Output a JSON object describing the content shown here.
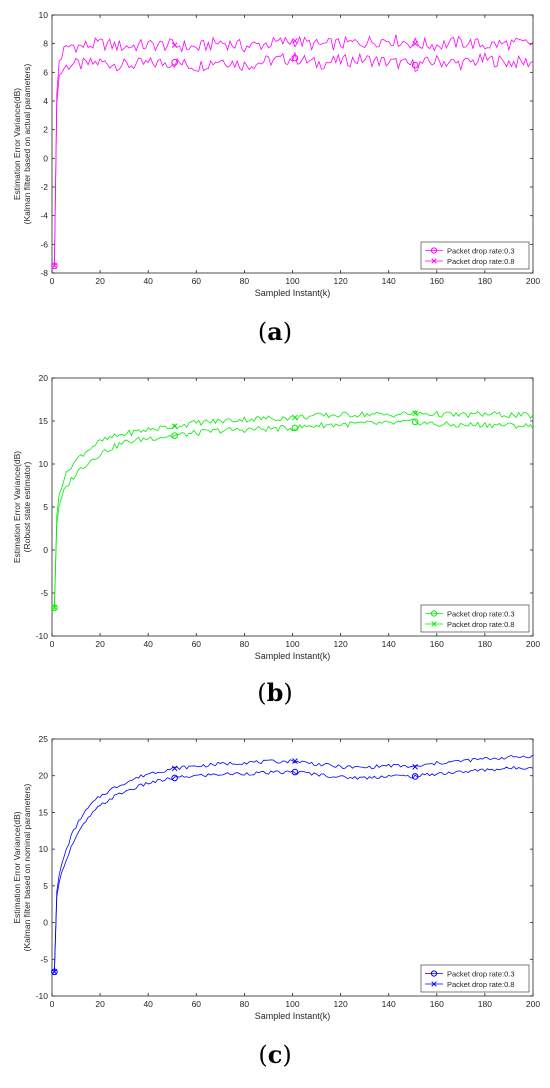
{
  "chart_data": [
    {
      "panel_label": "a",
      "type": "line",
      "color": "#ff00ff",
      "xlabel": "Sampled Instant(k)",
      "ylabel": [
        "Estimation Error Variance(dB)",
        "(Kalman filter based on actual parameters)"
      ],
      "xlim": [
        0,
        200
      ],
      "ylim": [
        -8,
        10
      ],
      "xticks": [
        0,
        20,
        40,
        60,
        80,
        100,
        120,
        140,
        160,
        180,
        200
      ],
      "yticks": [
        -8,
        -6,
        -4,
        -2,
        0,
        2,
        4,
        6,
        8,
        10
      ],
      "legend_position": "bottom-right",
      "series": [
        {
          "name": "Packet drop rate:0.3",
          "marker": "circle",
          "x": [
            1,
            2,
            3,
            5,
            8,
            12,
            20,
            30,
            40,
            51,
            60,
            70,
            80,
            90,
            101,
            110,
            120,
            130,
            140,
            151,
            160,
            170,
            180,
            190,
            200
          ],
          "y": [
            -7.5,
            3.8,
            5.8,
            6.3,
            6.6,
            6.5,
            6.7,
            6.5,
            6.6,
            6.7,
            6.4,
            6.9,
            6.5,
            6.8,
            7.0,
            6.6,
            6.8,
            6.9,
            6.7,
            6.5,
            6.8,
            6.6,
            6.9,
            6.7,
            6.7
          ]
        },
        {
          "name": "Packet drop rate:0.8",
          "marker": "x",
          "x": [
            1,
            2,
            3,
            5,
            8,
            12,
            20,
            30,
            40,
            51,
            60,
            70,
            80,
            90,
            101,
            110,
            120,
            130,
            140,
            151,
            160,
            170,
            180,
            190,
            200
          ],
          "y": [
            -7.5,
            4.5,
            6.8,
            7.5,
            7.9,
            7.8,
            8.0,
            7.8,
            7.9,
            7.9,
            7.7,
            8.1,
            7.8,
            8.0,
            8.2,
            7.9,
            8.0,
            8.1,
            8.3,
            8.0,
            7.9,
            8.1,
            7.9,
            8.0,
            8.0
          ]
        }
      ]
    },
    {
      "panel_label": "b",
      "type": "line",
      "color": "#00ee00",
      "xlabel": "Sampled Instant(k)",
      "ylabel": [
        "Estimation Error Variance(dB)",
        "(Robust state estimator)"
      ],
      "xlim": [
        0,
        200
      ],
      "ylim": [
        -10,
        20
      ],
      "xticks": [
        0,
        20,
        40,
        60,
        80,
        100,
        120,
        140,
        160,
        180,
        200
      ],
      "yticks": [
        -10,
        -5,
        0,
        5,
        10,
        15,
        20
      ],
      "legend_position": "bottom-right",
      "series": [
        {
          "name": "Packet drop rate:0.3",
          "marker": "circle",
          "x": [
            1,
            2,
            3,
            5,
            8,
            12,
            16,
            20,
            25,
            30,
            40,
            51,
            60,
            70,
            80,
            90,
            101,
            110,
            120,
            130,
            140,
            151,
            160,
            170,
            180,
            190,
            200
          ],
          "y": [
            -6.7,
            3.0,
            5.2,
            6.8,
            8.2,
            9.5,
            10.4,
            11.2,
            11.9,
            12.5,
            13.0,
            13.3,
            13.6,
            13.9,
            14.0,
            14.1,
            14.2,
            14.5,
            14.6,
            14.7,
            14.7,
            14.9,
            14.6,
            14.5,
            14.6,
            14.5,
            14.4
          ]
        },
        {
          "name": "Packet drop rate:0.8",
          "marker": "x",
          "x": [
            1,
            2,
            3,
            5,
            8,
            12,
            16,
            20,
            25,
            30,
            40,
            51,
            60,
            70,
            80,
            90,
            101,
            110,
            120,
            130,
            140,
            151,
            160,
            170,
            180,
            190,
            200
          ],
          "y": [
            -6.7,
            4.0,
            6.5,
            8.3,
            9.8,
            11.0,
            11.9,
            12.6,
            13.1,
            13.5,
            14.0,
            14.4,
            14.8,
            15.0,
            15.2,
            15.3,
            15.4,
            15.6,
            15.7,
            15.8,
            15.7,
            15.9,
            15.8,
            15.7,
            15.8,
            15.7,
            15.6
          ]
        }
      ]
    },
    {
      "panel_label": "c",
      "type": "line",
      "color": "#0000ff",
      "xlabel": "Sampled Instant(k)",
      "ylabel": [
        "Estimation Error Variance(dB)",
        "(Kalman filter based on nominal parameters)"
      ],
      "xlim": [
        0,
        200
      ],
      "ylim": [
        -10,
        25
      ],
      "xticks": [
        0,
        20,
        40,
        60,
        80,
        100,
        120,
        140,
        160,
        180,
        200
      ],
      "yticks": [
        -10,
        -5,
        0,
        5,
        10,
        15,
        20,
        25
      ],
      "legend_position": "bottom-right",
      "series": [
        {
          "name": "Packet drop rate:0.3",
          "marker": "circle",
          "x": [
            1,
            2,
            3,
            5,
            8,
            12,
            16,
            20,
            25,
            30,
            40,
            51,
            60,
            70,
            80,
            90,
            101,
            110,
            120,
            130,
            140,
            151,
            160,
            170,
            180,
            190,
            200
          ],
          "y": [
            -6.7,
            3.5,
            5.5,
            7.8,
            10.3,
            12.8,
            14.6,
            15.9,
            17.0,
            17.8,
            19.0,
            19.7,
            20.0,
            20.2,
            20.3,
            20.4,
            20.5,
            20.2,
            19.8,
            19.7,
            20.0,
            19.9,
            20.3,
            20.5,
            20.8,
            21.0,
            21.2
          ]
        },
        {
          "name": "Packet drop rate:0.8",
          "marker": "x",
          "x": [
            1,
            2,
            3,
            5,
            8,
            12,
            16,
            20,
            25,
            30,
            40,
            51,
            60,
            70,
            80,
            90,
            101,
            110,
            120,
            130,
            140,
            151,
            160,
            170,
            180,
            190,
            200
          ],
          "y": [
            -6.7,
            4.2,
            6.5,
            9.0,
            11.8,
            14.3,
            16.0,
            17.2,
            18.2,
            19.0,
            20.3,
            21.0,
            21.3,
            21.6,
            21.8,
            21.9,
            22.0,
            21.6,
            21.2,
            21.1,
            21.4,
            21.2,
            21.7,
            22.0,
            22.3,
            22.5,
            22.7
          ]
        }
      ]
    }
  ]
}
